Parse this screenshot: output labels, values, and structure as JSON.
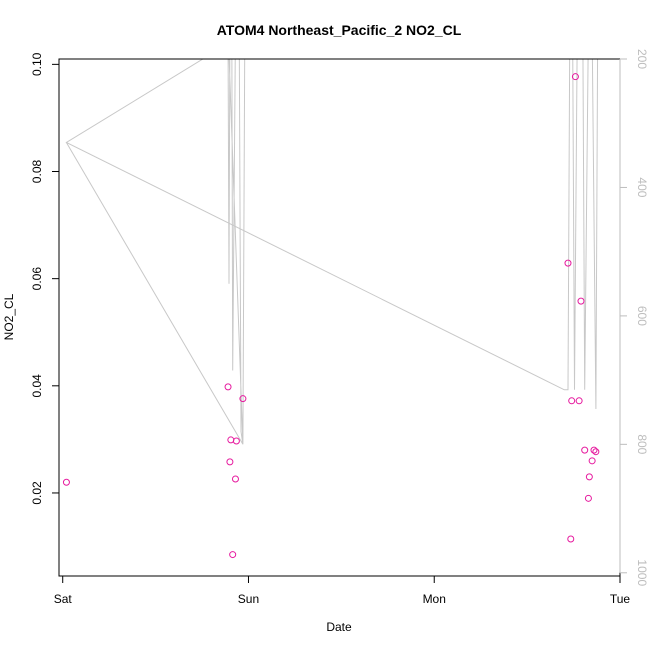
{
  "chart_data": {
    "type": "scatter",
    "title": "ATOM4 Northeast_Pacific_2 NO2_CL",
    "xlabel": "Date",
    "ylabel": "NO2_CL",
    "x_ticks": [
      "Sat",
      "Sun",
      "Mon",
      "Tue"
    ],
    "x_range_days": [
      -0.02,
      3.0
    ],
    "ylim": [
      0.0045,
      0.101
    ],
    "y_ticks": [
      0.02,
      0.04,
      0.06,
      0.08,
      0.1
    ],
    "y_tick_labels": [
      "0.02",
      "0.04",
      "0.06",
      "0.08",
      "0.10"
    ],
    "y2_range": [
      1005,
      200
    ],
    "y2_ticks": [
      200,
      400,
      600,
      800,
      1000
    ],
    "y2_tick_labels": [
      "200",
      "400",
      "600",
      "800",
      "1000"
    ],
    "colors": {
      "points": "#e6199e",
      "secondary_line": "#c8c8c8",
      "frame": "#000000"
    },
    "series": [
      {
        "values": [
          [
            0.02,
            0.022
          ],
          [
            0.89,
            0.0398
          ],
          [
            0.9,
            0.0258
          ],
          [
            0.905,
            0.0299
          ],
          [
            0.915,
            0.0085
          ],
          [
            0.93,
            0.0226
          ],
          [
            0.935,
            0.0297
          ],
          [
            0.97,
            0.0376
          ],
          [
            2.72,
            0.0629
          ],
          [
            2.735,
            0.0114
          ],
          [
            2.74,
            0.0372
          ],
          [
            2.76,
            0.0977
          ],
          [
            2.78,
            0.0372
          ],
          [
            2.79,
            0.0558
          ],
          [
            2.81,
            0.028
          ],
          [
            2.83,
            0.019
          ],
          [
            2.835,
            0.023
          ],
          [
            2.85,
            0.026
          ],
          [
            2.86,
            0.028
          ],
          [
            2.87,
            0.0277
          ]
        ]
      },
      {
        "axis": "right",
        "values": [
          [
            0.02,
            330
          ],
          [
            0.97,
            800
          ],
          [
            0.89,
            150
          ],
          [
            0.895,
            550
          ],
          [
            0.9,
            150
          ],
          [
            0.91,
            150
          ],
          [
            0.915,
            685
          ],
          [
            0.93,
            150
          ],
          [
            0.95,
            150
          ],
          [
            0.96,
            780
          ],
          [
            0.97,
            800
          ],
          [
            0.98,
            160
          ],
          [
            0.02,
            330
          ],
          [
            2.7,
            715
          ],
          [
            2.72,
            715
          ],
          [
            2.73,
            150
          ],
          [
            2.745,
            150
          ],
          [
            2.755,
            715
          ],
          [
            2.77,
            150
          ],
          [
            2.8,
            150
          ],
          [
            2.81,
            715
          ],
          [
            2.83,
            150
          ],
          [
            2.85,
            150
          ],
          [
            2.87,
            745
          ],
          [
            2.88,
            150
          ],
          [
            2.9,
            150
          ]
        ]
      }
    ]
  }
}
